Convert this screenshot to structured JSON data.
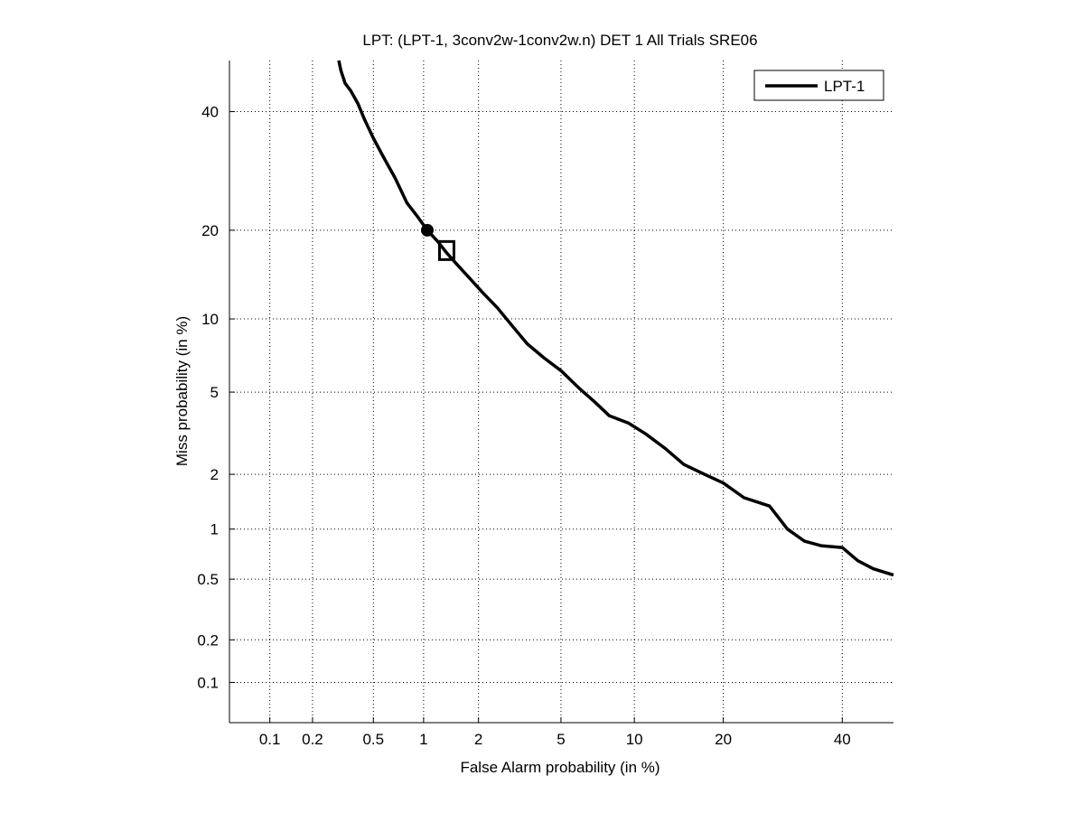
{
  "chart_data": {
    "type": "line",
    "title": "LPT: (LPT-1, 3conv2w-1conv2w.n) DET 1 All Trials SRE06",
    "xlabel": "False Alarm probability (in %)",
    "ylabel": "Miss probability (in %)",
    "xscale": "probit",
    "yscale": "probit",
    "xlim": [
      0.05,
      50
    ],
    "ylim": [
      0.05,
      50
    ],
    "grid": true,
    "legend_position": "top-right",
    "xticks": [
      {
        "value": 0.1,
        "label": "0.1"
      },
      {
        "value": 0.2,
        "label": "0.2"
      },
      {
        "value": 0.5,
        "label": "0.5"
      },
      {
        "value": 1,
        "label": "1"
      },
      {
        "value": 2,
        "label": "2"
      },
      {
        "value": 5,
        "label": "5"
      },
      {
        "value": 10,
        "label": "10"
      },
      {
        "value": 20,
        "label": "20"
      },
      {
        "value": 40,
        "label": "40"
      }
    ],
    "yticks": [
      {
        "value": 0.1,
        "label": "0.1"
      },
      {
        "value": 0.2,
        "label": "0.2"
      },
      {
        "value": 0.5,
        "label": "0.5"
      },
      {
        "value": 1,
        "label": "1"
      },
      {
        "value": 2,
        "label": "2"
      },
      {
        "value": 5,
        "label": "5"
      },
      {
        "value": 10,
        "label": "10"
      },
      {
        "value": 20,
        "label": "20"
      },
      {
        "value": 40,
        "label": "40"
      }
    ],
    "series": [
      {
        "name": "LPT-1",
        "color": "#000000",
        "x": [
          0.3,
          0.31,
          0.33,
          0.36,
          0.4,
          0.44,
          0.5,
          0.58,
          0.68,
          0.8,
          0.92,
          1.05,
          1.2,
          1.35,
          1.55,
          1.8,
          2.1,
          2.5,
          3.0,
          3.5,
          4.2,
          5.0,
          6.0,
          7.0,
          8.0,
          9.5,
          11.0,
          13.0,
          15.0,
          17.5,
          20.0,
          23.0,
          27.0,
          30.0,
          33.0,
          36.0,
          40.0,
          43.0,
          46.0,
          50.0
        ],
        "y": [
          50.0,
          48.0,
          45.5,
          44.0,
          41.5,
          38.5,
          35.0,
          31.5,
          28.0,
          24.0,
          22.0,
          20.0,
          18.5,
          17.0,
          15.5,
          14.0,
          12.5,
          11.0,
          9.3,
          8.0,
          7.0,
          6.2,
          5.2,
          4.5,
          3.9,
          3.6,
          3.2,
          2.7,
          2.25,
          2.0,
          1.8,
          1.5,
          1.35,
          1.0,
          0.85,
          0.8,
          0.78,
          0.65,
          0.58,
          0.53
        ]
      }
    ],
    "markers": [
      {
        "shape": "circle",
        "x": 1.05,
        "y": 20.0
      },
      {
        "shape": "square",
        "x": 1.35,
        "y": 17.3
      }
    ]
  }
}
